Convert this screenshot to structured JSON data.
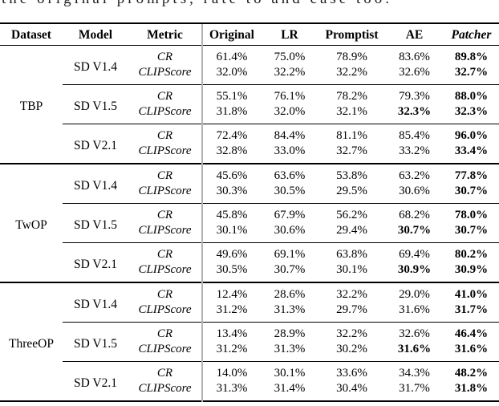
{
  "page": {
    "clipped_caption": "the original prompts, rate to and case too.",
    "colors": {
      "background": "#ffffff",
      "text": "#000000",
      "rule": "#000000",
      "column_divider": "#b4b4b4"
    }
  },
  "table": {
    "headers": {
      "dataset": "Dataset",
      "model": "Model",
      "metric": "Metric",
      "methods": [
        "Original",
        "LR",
        "Promptist",
        "AE",
        "Patcher"
      ]
    },
    "groups": [
      {
        "dataset": "TBP",
        "models": [
          {
            "name": "SD V1.4",
            "rows": [
              {
                "metric": "CR",
                "values": [
                  "61.4%",
                  "75.0%",
                  "78.9%",
                  "83.6%",
                  "89.8%"
                ],
                "bold_idx": [
                  4
                ]
              },
              {
                "metric": "CLIPScore",
                "values": [
                  "32.0%",
                  "32.2%",
                  "32.2%",
                  "32.6%",
                  "32.7%"
                ],
                "bold_idx": [
                  4
                ]
              }
            ]
          },
          {
            "name": "SD V1.5",
            "rows": [
              {
                "metric": "CR",
                "values": [
                  "55.1%",
                  "76.1%",
                  "78.2%",
                  "79.3%",
                  "88.0%"
                ],
                "bold_idx": [
                  4
                ]
              },
              {
                "metric": "CLIPScore",
                "values": [
                  "31.8%",
                  "32.0%",
                  "32.1%",
                  "32.3%",
                  "32.3%"
                ],
                "bold_idx": [
                  3,
                  4
                ]
              }
            ]
          },
          {
            "name": "SD V2.1",
            "rows": [
              {
                "metric": "CR",
                "values": [
                  "72.4%",
                  "84.4%",
                  "81.1%",
                  "85.4%",
                  "96.0%"
                ],
                "bold_idx": [
                  4
                ]
              },
              {
                "metric": "CLIPScore",
                "values": [
                  "32.8%",
                  "33.0%",
                  "32.7%",
                  "33.2%",
                  "33.4%"
                ],
                "bold_idx": [
                  4
                ]
              }
            ]
          }
        ]
      },
      {
        "dataset": "TwOP",
        "models": [
          {
            "name": "SD V1.4",
            "rows": [
              {
                "metric": "CR",
                "values": [
                  "45.6%",
                  "63.6%",
                  "53.8%",
                  "63.2%",
                  "77.8%"
                ],
                "bold_idx": [
                  4
                ]
              },
              {
                "metric": "CLIPScore",
                "values": [
                  "30.3%",
                  "30.5%",
                  "29.5%",
                  "30.6%",
                  "30.7%"
                ],
                "bold_idx": [
                  4
                ]
              }
            ]
          },
          {
            "name": "SD V1.5",
            "rows": [
              {
                "metric": "CR",
                "values": [
                  "45.8%",
                  "67.9%",
                  "56.2%",
                  "68.2%",
                  "78.0%"
                ],
                "bold_idx": [
                  4
                ]
              },
              {
                "metric": "CLIPScore",
                "values": [
                  "30.1%",
                  "30.6%",
                  "29.4%",
                  "30.7%",
                  "30.7%"
                ],
                "bold_idx": [
                  3,
                  4
                ]
              }
            ]
          },
          {
            "name": "SD V2.1",
            "rows": [
              {
                "metric": "CR",
                "values": [
                  "49.6%",
                  "69.1%",
                  "63.8%",
                  "69.4%",
                  "80.2%"
                ],
                "bold_idx": [
                  4
                ]
              },
              {
                "metric": "CLIPScore",
                "values": [
                  "30.5%",
                  "30.7%",
                  "30.1%",
                  "30.9%",
                  "30.9%"
                ],
                "bold_idx": [
                  3,
                  4
                ]
              }
            ]
          }
        ]
      },
      {
        "dataset": "ThreeOP",
        "models": [
          {
            "name": "SD V1.4",
            "rows": [
              {
                "metric": "CR",
                "values": [
                  "12.4%",
                  "28.6%",
                  "32.2%",
                  "29.0%",
                  "41.0%"
                ],
                "bold_idx": [
                  4
                ]
              },
              {
                "metric": "CLIPScore",
                "values": [
                  "31.2%",
                  "31.3%",
                  "29.7%",
                  "31.6%",
                  "31.7%"
                ],
                "bold_idx": [
                  4
                ]
              }
            ]
          },
          {
            "name": "SD V1.5",
            "rows": [
              {
                "metric": "CR",
                "values": [
                  "13.4%",
                  "28.9%",
                  "32.2%",
                  "32.6%",
                  "46.4%"
                ],
                "bold_idx": [
                  4
                ]
              },
              {
                "metric": "CLIPScore",
                "values": [
                  "31.2%",
                  "31.3%",
                  "30.2%",
                  "31.6%",
                  "31.6%"
                ],
                "bold_idx": [
                  3,
                  4
                ]
              }
            ]
          },
          {
            "name": "SD V2.1",
            "rows": [
              {
                "metric": "CR",
                "values": [
                  "14.0%",
                  "30.1%",
                  "33.6%",
                  "34.3%",
                  "48.2%"
                ],
                "bold_idx": [
                  4
                ]
              },
              {
                "metric": "CLIPScore",
                "values": [
                  "31.3%",
                  "31.4%",
                  "30.4%",
                  "31.7%",
                  "31.8%"
                ],
                "bold_idx": [
                  4
                ]
              }
            ]
          }
        ]
      }
    ]
  }
}
